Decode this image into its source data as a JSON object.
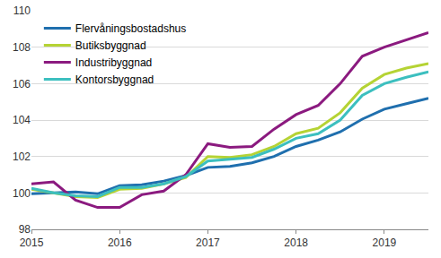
{
  "chart_data": {
    "type": "line",
    "x": [
      2015,
      2015.25,
      2015.5,
      2015.75,
      2016,
      2016.25,
      2016.5,
      2016.75,
      2017,
      2017.25,
      2017.5,
      2017.75,
      2018,
      2018.25,
      2018.5,
      2018.75,
      2019,
      2019.25,
      2019.5
    ],
    "series": [
      {
        "name": "Flervåningsbostadshus",
        "color": "#1f6fae",
        "values": [
          99.95,
          100.0,
          100.05,
          99.95,
          100.4,
          100.45,
          100.65,
          100.95,
          101.4,
          101.45,
          101.65,
          102.0,
          102.55,
          102.9,
          103.35,
          104.05,
          104.6,
          104.9,
          105.2
        ]
      },
      {
        "name": "Butiksbyggnad",
        "color": "#b5d334",
        "values": [
          100.2,
          100.0,
          99.8,
          99.75,
          100.2,
          100.25,
          100.5,
          100.85,
          102.0,
          101.95,
          102.1,
          102.55,
          103.25,
          103.55,
          104.4,
          105.75,
          106.5,
          106.85,
          107.1
        ]
      },
      {
        "name": "Industribyggnad",
        "color": "#8b1a7f",
        "values": [
          100.5,
          100.6,
          99.6,
          99.2,
          99.2,
          99.9,
          100.1,
          101.0,
          102.7,
          102.5,
          102.55,
          103.5,
          104.3,
          104.8,
          106.0,
          107.5,
          108.0,
          108.4,
          108.8
        ]
      },
      {
        "name": "Kontorsbyggnad",
        "color": "#3cbfbf",
        "values": [
          100.25,
          100.0,
          99.85,
          99.8,
          100.3,
          100.3,
          100.5,
          100.9,
          101.75,
          101.85,
          101.95,
          102.4,
          103.0,
          103.25,
          104.0,
          105.35,
          106.0,
          106.35,
          106.65
        ]
      }
    ],
    "xlim": [
      2015,
      2019.5
    ],
    "xticks": [
      2015,
      2016,
      2017,
      2018,
      2019
    ],
    "ylim": [
      98,
      110
    ],
    "yticks": [
      98,
      100,
      102,
      104,
      106,
      108,
      110
    ],
    "grid": true,
    "legend": "top-left"
  }
}
